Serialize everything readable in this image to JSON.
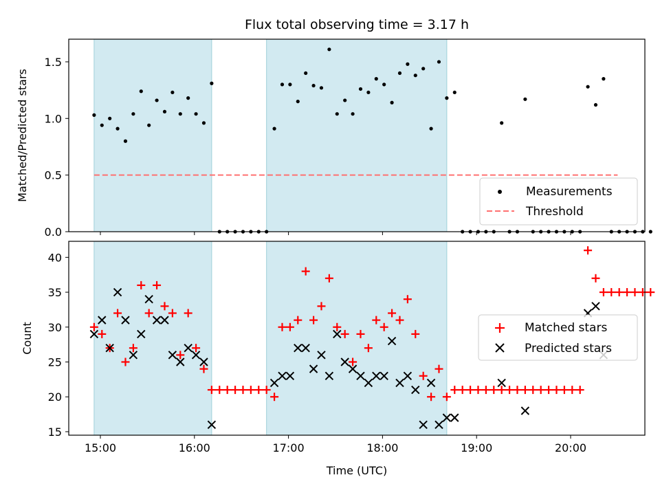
{
  "title": "Flux total observing time = 3.17 h",
  "chart_data": [
    {
      "type": "scatter",
      "ylabel": "Matched/Predicted stars",
      "ylim": [
        0,
        1.7
      ],
      "yticks": [
        "0.0",
        "0.5",
        "1.0",
        "1.5"
      ],
      "yticks_values": [
        0,
        0.5,
        1.0,
        1.5
      ],
      "legend_position": "bottom-right",
      "threshold": {
        "name": "Threshold",
        "color": "#ff7070",
        "x_range": [
          "14:56",
          "20:30"
        ],
        "value": 0.5
      },
      "series": [
        {
          "name": "Measurements",
          "color": "#000000",
          "points": [
            [
              "14:56",
              1.03
            ],
            [
              "15:01",
              0.94
            ],
            [
              "15:06",
              1.0
            ],
            [
              "15:11",
              0.91
            ],
            [
              "15:16",
              0.8
            ],
            [
              "15:21",
              1.04
            ],
            [
              "15:26",
              1.24
            ],
            [
              "15:31",
              0.94
            ],
            [
              "15:36",
              1.16
            ],
            [
              "15:41",
              1.06
            ],
            [
              "15:46",
              1.23
            ],
            [
              "15:51",
              1.04
            ],
            [
              "15:56",
              1.18
            ],
            [
              "16:01",
              1.04
            ],
            [
              "16:06",
              0.96
            ],
            [
              "16:11",
              1.31
            ],
            [
              "16:16",
              0.0
            ],
            [
              "16:21",
              0.0
            ],
            [
              "16:26",
              0.0
            ],
            [
              "16:31",
              0.0
            ],
            [
              "16:36",
              0.0
            ],
            [
              "16:41",
              0.0
            ],
            [
              "16:46",
              0.0
            ],
            [
              "16:51",
              0.91
            ],
            [
              "16:56",
              1.3
            ],
            [
              "17:01",
              1.3
            ],
            [
              "17:06",
              1.15
            ],
            [
              "17:11",
              1.4
            ],
            [
              "17:16",
              1.29
            ],
            [
              "17:21",
              1.27
            ],
            [
              "17:26",
              1.61
            ],
            [
              "17:31",
              1.04
            ],
            [
              "17:36",
              1.16
            ],
            [
              "17:41",
              1.04
            ],
            [
              "17:46",
              1.26
            ],
            [
              "17:51",
              1.23
            ],
            [
              "17:56",
              1.35
            ],
            [
              "18:01",
              1.3
            ],
            [
              "18:06",
              1.14
            ],
            [
              "18:11",
              1.4
            ],
            [
              "18:16",
              1.48
            ],
            [
              "18:21",
              1.38
            ],
            [
              "18:26",
              1.44
            ],
            [
              "18:31",
              0.91
            ],
            [
              "18:36",
              1.5
            ],
            [
              "18:41",
              1.18
            ],
            [
              "18:46",
              1.23
            ],
            [
              "18:51",
              0.0
            ],
            [
              "18:56",
              0.0
            ],
            [
              "19:01",
              0.0
            ],
            [
              "19:06",
              0.0
            ],
            [
              "19:11",
              0.0
            ],
            [
              "19:16",
              0.96
            ],
            [
              "19:21",
              0.0
            ],
            [
              "19:26",
              0.0
            ],
            [
              "19:31",
              1.17
            ],
            [
              "19:36",
              0.0
            ],
            [
              "19:41",
              0.0
            ],
            [
              "19:46",
              0.0
            ],
            [
              "19:51",
              0.0
            ],
            [
              "19:56",
              0.0
            ],
            [
              "20:01",
              0.0
            ],
            [
              "20:06",
              0.0
            ],
            [
              "20:11",
              1.28
            ],
            [
              "20:16",
              1.12
            ],
            [
              "20:21",
              1.35
            ],
            [
              "20:26",
              0.0
            ],
            [
              "20:31",
              0.0
            ],
            [
              "20:36",
              0.0
            ],
            [
              "20:41",
              0.0
            ],
            [
              "20:46",
              0.0
            ],
            [
              "20:51",
              0.0
            ]
          ]
        }
      ]
    },
    {
      "type": "scatter",
      "xlabel": "Time (UTC)",
      "ylabel": "Count",
      "ylim": [
        14.5,
        42.3
      ],
      "yticks": [
        "15",
        "20",
        "25",
        "30",
        "35",
        "40"
      ],
      "yticks_values": [
        15,
        20,
        25,
        30,
        35,
        40
      ],
      "xticks": [
        "15:00",
        "16:00",
        "17:00",
        "18:00",
        "19:00",
        "20:00"
      ],
      "xticks_values": [
        "15:00",
        "16:00",
        "17:00",
        "18:00",
        "19:00",
        "20:00"
      ],
      "legend_position": "center-right",
      "series": [
        {
          "name": "Matched stars",
          "color": "#ff0000",
          "marker": "plus",
          "points": [
            [
              "14:56",
              30
            ],
            [
              "15:01",
              29
            ],
            [
              "15:06",
              27
            ],
            [
              "15:11",
              32
            ],
            [
              "15:16",
              25
            ],
            [
              "15:21",
              27
            ],
            [
              "15:26",
              36
            ],
            [
              "15:31",
              32
            ],
            [
              "15:36",
              36
            ],
            [
              "15:41",
              33
            ],
            [
              "15:46",
              32
            ],
            [
              "15:51",
              26
            ],
            [
              "15:56",
              32
            ],
            [
              "16:01",
              27
            ],
            [
              "16:06",
              24
            ],
            [
              "16:11",
              21
            ],
            [
              "16:16",
              21
            ],
            [
              "16:21",
              21
            ],
            [
              "16:26",
              21
            ],
            [
              "16:31",
              21
            ],
            [
              "16:36",
              21
            ],
            [
              "16:41",
              21
            ],
            [
              "16:46",
              21
            ],
            [
              "16:51",
              20
            ],
            [
              "16:56",
              30
            ],
            [
              "17:01",
              30
            ],
            [
              "17:06",
              31
            ],
            [
              "17:11",
              38
            ],
            [
              "17:16",
              31
            ],
            [
              "17:21",
              33
            ],
            [
              "17:26",
              37
            ],
            [
              "17:31",
              30
            ],
            [
              "17:36",
              29
            ],
            [
              "17:41",
              25
            ],
            [
              "17:46",
              29
            ],
            [
              "17:51",
              27
            ],
            [
              "17:56",
              31
            ],
            [
              "18:01",
              30
            ],
            [
              "18:06",
              32
            ],
            [
              "18:11",
              31
            ],
            [
              "18:16",
              34
            ],
            [
              "18:21",
              29
            ],
            [
              "18:26",
              23
            ],
            [
              "18:31",
              20
            ],
            [
              "18:36",
              24
            ],
            [
              "18:41",
              20
            ],
            [
              "18:46",
              21
            ],
            [
              "18:51",
              21
            ],
            [
              "18:56",
              21
            ],
            [
              "19:01",
              21
            ],
            [
              "19:06",
              21
            ],
            [
              "19:11",
              21
            ],
            [
              "19:16",
              21
            ],
            [
              "19:21",
              21
            ],
            [
              "19:26",
              21
            ],
            [
              "19:31",
              21
            ],
            [
              "19:36",
              21
            ],
            [
              "19:41",
              21
            ],
            [
              "19:46",
              21
            ],
            [
              "19:51",
              21
            ],
            [
              "19:56",
              21
            ],
            [
              "20:01",
              21
            ],
            [
              "20:06",
              21
            ],
            [
              "20:11",
              41
            ],
            [
              "20:16",
              37
            ],
            [
              "20:21",
              35
            ],
            [
              "20:26",
              35
            ],
            [
              "20:31",
              35
            ],
            [
              "20:36",
              35
            ],
            [
              "20:41",
              35
            ],
            [
              "20:46",
              35
            ],
            [
              "20:51",
              35
            ]
          ]
        },
        {
          "name": "Predicted stars",
          "color": "#000000",
          "marker": "x",
          "points": [
            [
              "14:56",
              29
            ],
            [
              "15:01",
              31
            ],
            [
              "15:06",
              27
            ],
            [
              "15:11",
              35
            ],
            [
              "15:16",
              31
            ],
            [
              "15:21",
              26
            ],
            [
              "15:26",
              29
            ],
            [
              "15:31",
              34
            ],
            [
              "15:36",
              31
            ],
            [
              "15:41",
              31
            ],
            [
              "15:46",
              26
            ],
            [
              "15:51",
              25
            ],
            [
              "15:56",
              27
            ],
            [
              "16:01",
              26
            ],
            [
              "16:06",
              25
            ],
            [
              "16:11",
              16
            ],
            [
              "16:51",
              22
            ],
            [
              "16:56",
              23
            ],
            [
              "17:01",
              23
            ],
            [
              "17:06",
              27
            ],
            [
              "17:11",
              27
            ],
            [
              "17:16",
              24
            ],
            [
              "17:21",
              26
            ],
            [
              "17:26",
              23
            ],
            [
              "17:31",
              29
            ],
            [
              "17:36",
              25
            ],
            [
              "17:41",
              24
            ],
            [
              "17:46",
              23
            ],
            [
              "17:51",
              22
            ],
            [
              "17:56",
              23
            ],
            [
              "18:01",
              23
            ],
            [
              "18:06",
              28
            ],
            [
              "18:11",
              22
            ],
            [
              "18:16",
              23
            ],
            [
              "18:21",
              21
            ],
            [
              "18:26",
              16
            ],
            [
              "18:31",
              22
            ],
            [
              "18:36",
              16
            ],
            [
              "18:41",
              17
            ],
            [
              "18:46",
              17
            ],
            [
              "19:16",
              22
            ],
            [
              "19:31",
              18
            ],
            [
              "20:11",
              32
            ],
            [
              "20:16",
              33
            ],
            [
              "20:21",
              26
            ]
          ]
        }
      ]
    }
  ],
  "observing_windows": [
    [
      "14:56",
      "16:11"
    ],
    [
      "16:46",
      "18:41"
    ]
  ],
  "window_color": "#add8e6"
}
